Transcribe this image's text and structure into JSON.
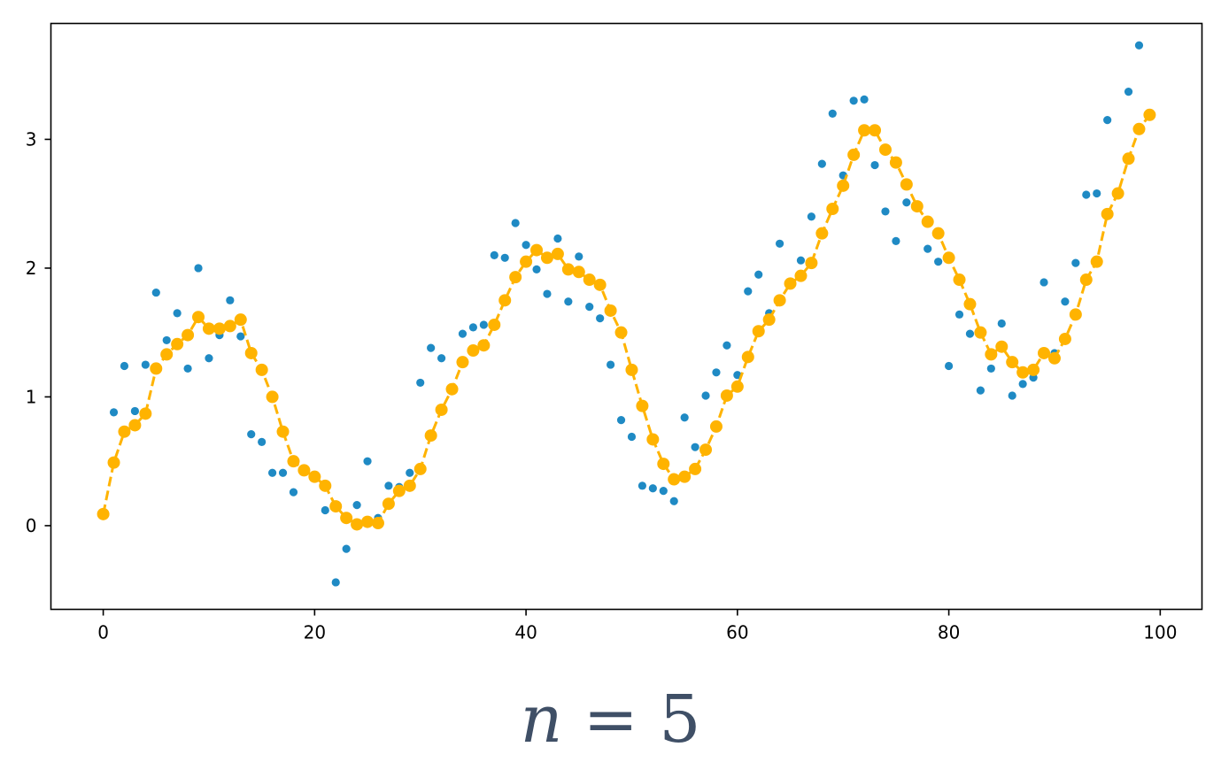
{
  "caption": {
    "variable": "n",
    "operator": "=",
    "value": "5"
  },
  "colors": {
    "scatter": "#1f8ac4",
    "smoothed": "#ffb300",
    "axes": "#000000",
    "caption": "#3f4f66"
  },
  "chart_data": {
    "type": "scatter",
    "title": "",
    "xlabel": "",
    "ylabel": "",
    "xlim": [
      -4.95,
      103.95
    ],
    "ylim": [
      -0.65,
      3.9
    ],
    "xticks": [
      0,
      20,
      40,
      60,
      80,
      100
    ],
    "yticks": [
      0,
      1,
      2,
      3
    ],
    "grid": false,
    "legend": "none",
    "series": [
      {
        "style": "scatter",
        "color": "#1f8ac4",
        "x": [
          0,
          1,
          2,
          3,
          4,
          5,
          6,
          7,
          8,
          9,
          10,
          11,
          12,
          13,
          14,
          15,
          16,
          17,
          18,
          19,
          20,
          21,
          22,
          23,
          24,
          25,
          26,
          27,
          28,
          29,
          30,
          31,
          32,
          33,
          34,
          35,
          36,
          37,
          38,
          39,
          40,
          41,
          42,
          43,
          44,
          45,
          46,
          47,
          48,
          49,
          50,
          51,
          52,
          53,
          54,
          55,
          56,
          57,
          58,
          59,
          60,
          61,
          62,
          63,
          64,
          65,
          66,
          67,
          68,
          69,
          70,
          71,
          72,
          73,
          74,
          75,
          76,
          77,
          78,
          79,
          80,
          81,
          82,
          83,
          84,
          85,
          86,
          87,
          88,
          89,
          90,
          91,
          92,
          93,
          94,
          95,
          96,
          97,
          98,
          99
        ],
        "y": [
          0.09,
          0.88,
          1.24,
          0.89,
          1.25,
          1.81,
          1.44,
          1.65,
          1.22,
          2.0,
          1.3,
          1.48,
          1.75,
          1.47,
          0.71,
          0.65,
          0.41,
          0.41,
          0.26,
          0.43,
          0.38,
          0.12,
          -0.44,
          -0.18,
          0.16,
          0.5,
          0.06,
          0.31,
          0.3,
          0.41,
          1.11,
          1.38,
          1.3,
          1.06,
          1.49,
          1.54,
          1.56,
          2.1,
          2.08,
          2.35,
          2.18,
          1.99,
          1.8,
          2.23,
          1.74,
          2.09,
          1.7,
          1.61,
          1.25,
          0.82,
          0.69,
          0.31,
          0.29,
          0.27,
          0.19,
          0.84,
          0.61,
          1.01,
          1.19,
          1.4,
          1.17,
          1.82,
          1.95,
          1.65,
          2.19,
          1.87,
          2.06,
          2.4,
          2.81,
          3.2,
          2.72,
          3.3,
          3.31,
          2.8,
          2.44,
          2.21,
          2.51,
          2.48,
          2.15,
          2.05,
          1.24,
          1.64,
          1.49,
          1.05,
          1.22,
          1.57,
          1.01,
          1.1,
          1.15,
          1.89,
          1.34,
          1.74,
          2.04,
          2.57,
          2.58,
          3.15,
          2.57,
          3.37,
          3.73,
          3.19
        ]
      },
      {
        "style": "dashed-line-markers",
        "color": "#ffb300",
        "x": [
          0,
          1,
          2,
          3,
          4,
          5,
          6,
          7,
          8,
          9,
          10,
          11,
          12,
          13,
          14,
          15,
          16,
          17,
          18,
          19,
          20,
          21,
          22,
          23,
          24,
          25,
          26,
          27,
          28,
          29,
          30,
          31,
          32,
          33,
          34,
          35,
          36,
          37,
          38,
          39,
          40,
          41,
          42,
          43,
          44,
          45,
          46,
          47,
          48,
          49,
          50,
          51,
          52,
          53,
          54,
          55,
          56,
          57,
          58,
          59,
          60,
          61,
          62,
          63,
          64,
          65,
          66,
          67,
          68,
          69,
          70,
          71,
          72,
          73,
          74,
          75,
          76,
          77,
          78,
          79,
          80,
          81,
          82,
          83,
          84,
          85,
          86,
          87,
          88,
          89,
          90,
          91,
          92,
          93,
          94,
          95,
          96,
          97,
          98,
          99
        ],
        "y": [
          0.09,
          0.49,
          0.73,
          0.78,
          0.87,
          1.22,
          1.33,
          1.41,
          1.48,
          1.62,
          1.53,
          1.53,
          1.55,
          1.6,
          1.34,
          1.21,
          1.0,
          0.73,
          0.5,
          0.43,
          0.38,
          0.31,
          0.15,
          0.06,
          0.01,
          0.03,
          0.02,
          0.17,
          0.27,
          0.31,
          0.44,
          0.7,
          0.9,
          1.06,
          1.27,
          1.36,
          1.4,
          1.56,
          1.75,
          1.93,
          2.05,
          2.14,
          2.08,
          2.11,
          1.99,
          1.97,
          1.91,
          1.87,
          1.67,
          1.5,
          1.21,
          0.93,
          0.67,
          0.48,
          0.36,
          0.38,
          0.44,
          0.59,
          0.77,
          1.01,
          1.08,
          1.31,
          1.51,
          1.6,
          1.75,
          1.88,
          1.94,
          2.04,
          2.27,
          2.46,
          2.64,
          2.88,
          3.07,
          3.07,
          2.92,
          2.82,
          2.65,
          2.48,
          2.36,
          2.27,
          2.08,
          1.91,
          1.72,
          1.5,
          1.33,
          1.39,
          1.27,
          1.19,
          1.21,
          1.34,
          1.3,
          1.45,
          1.64,
          1.91,
          2.05,
          2.42,
          2.58,
          2.85,
          3.08,
          3.19
        ]
      }
    ]
  }
}
